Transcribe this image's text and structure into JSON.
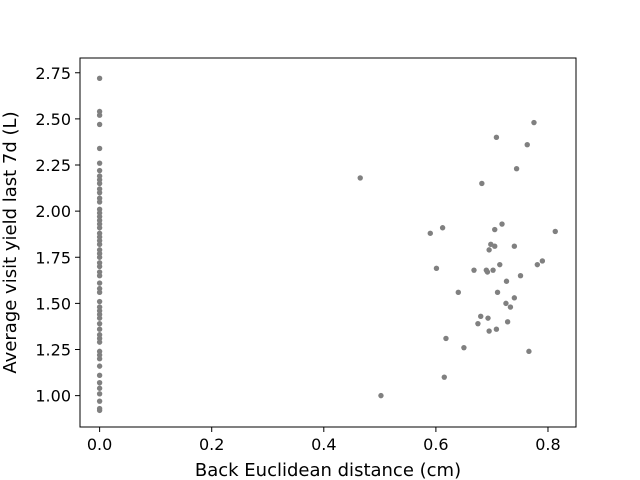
{
  "chart_data": {
    "type": "scatter",
    "xlabel": "Back Euclidean distance (cm)",
    "ylabel": "Average visit yield last 7d (L)",
    "xlim": [
      -0.035,
      0.85
    ],
    "ylim": [
      0.83,
      2.83
    ],
    "xticks": [
      0.0,
      0.2,
      0.4,
      0.6,
      0.8
    ],
    "xtick_labels": [
      "0.0",
      "0.2",
      "0.4",
      "0.6",
      "0.8"
    ],
    "yticks": [
      1.0,
      1.25,
      1.5,
      1.75,
      2.0,
      2.25,
      2.5,
      2.75
    ],
    "ytick_labels": [
      "1.00",
      "1.25",
      "1.50",
      "1.75",
      "2.00",
      "2.25",
      "2.50",
      "2.75"
    ],
    "grid": false,
    "marker_color": "#808080",
    "series": [
      {
        "points": [
          [
            0,
            2.72
          ],
          [
            0,
            2.54
          ],
          [
            0,
            2.52
          ],
          [
            0,
            2.47
          ],
          [
            0,
            2.34
          ],
          [
            0,
            2.26
          ],
          [
            0,
            2.22
          ],
          [
            0,
            2.19
          ],
          [
            0,
            2.17
          ],
          [
            0,
            2.15
          ],
          [
            0,
            2.12
          ],
          [
            0,
            2.1
          ],
          [
            0,
            2.07
          ],
          [
            0,
            2.05
          ],
          [
            0,
            2.01
          ],
          [
            0,
            1.99
          ],
          [
            0,
            1.97
          ],
          [
            0,
            1.95
          ],
          [
            0,
            1.93
          ],
          [
            0,
            1.91
          ],
          [
            0,
            1.88
          ],
          [
            0,
            1.86
          ],
          [
            0,
            1.84
          ],
          [
            0,
            1.82
          ],
          [
            0,
            1.79
          ],
          [
            0,
            1.77
          ],
          [
            0,
            1.75
          ],
          [
            0,
            1.72
          ],
          [
            0,
            1.7
          ],
          [
            0,
            1.67
          ],
          [
            0,
            1.65
          ],
          [
            0,
            1.61
          ],
          [
            0,
            1.58
          ],
          [
            0,
            1.56
          ],
          [
            0,
            1.51
          ],
          [
            0,
            1.48
          ],
          [
            0,
            1.46
          ],
          [
            0,
            1.44
          ],
          [
            0,
            1.42
          ],
          [
            0,
            1.39
          ],
          [
            0,
            1.36
          ],
          [
            0,
            1.33
          ],
          [
            0,
            1.31
          ],
          [
            0,
            1.29
          ],
          [
            0,
            1.24
          ],
          [
            0,
            1.22
          ],
          [
            0,
            1.2
          ],
          [
            0,
            1.16
          ],
          [
            0,
            1.11
          ],
          [
            0,
            1.07
          ],
          [
            0,
            1.04
          ],
          [
            0,
            1.01
          ],
          [
            0,
            0.97
          ],
          [
            0,
            0.93
          ],
          [
            0,
            0.92
          ],
          [
            0.465,
            2.18
          ],
          [
            0.502,
            1.0
          ],
          [
            0.59,
            1.88
          ],
          [
            0.601,
            1.69
          ],
          [
            0.612,
            1.91
          ],
          [
            0.615,
            1.1
          ],
          [
            0.618,
            1.31
          ],
          [
            0.64,
            1.56
          ],
          [
            0.65,
            1.26
          ],
          [
            0.668,
            1.68
          ],
          [
            0.675,
            1.39
          ],
          [
            0.68,
            1.43
          ],
          [
            0.682,
            2.15
          ],
          [
            0.69,
            1.68
          ],
          [
            0.692,
            1.67
          ],
          [
            0.693,
            1.42
          ],
          [
            0.695,
            1.35
          ],
          [
            0.695,
            1.79
          ],
          [
            0.698,
            1.82
          ],
          [
            0.702,
            1.68
          ],
          [
            0.705,
            1.81
          ],
          [
            0.705,
            1.9
          ],
          [
            0.708,
            1.36
          ],
          [
            0.708,
            2.4
          ],
          [
            0.71,
            1.56
          ],
          [
            0.714,
            1.71
          ],
          [
            0.718,
            1.93
          ],
          [
            0.725,
            1.5
          ],
          [
            0.726,
            1.62
          ],
          [
            0.728,
            1.4
          ],
          [
            0.733,
            1.48
          ],
          [
            0.74,
            1.53
          ],
          [
            0.74,
            1.81
          ],
          [
            0.744,
            2.23
          ],
          [
            0.751,
            1.65
          ],
          [
            0.763,
            2.36
          ],
          [
            0.766,
            1.24
          ],
          [
            0.775,
            2.48
          ],
          [
            0.781,
            1.71
          ],
          [
            0.79,
            1.73
          ],
          [
            0.813,
            1.89
          ]
        ]
      }
    ]
  }
}
